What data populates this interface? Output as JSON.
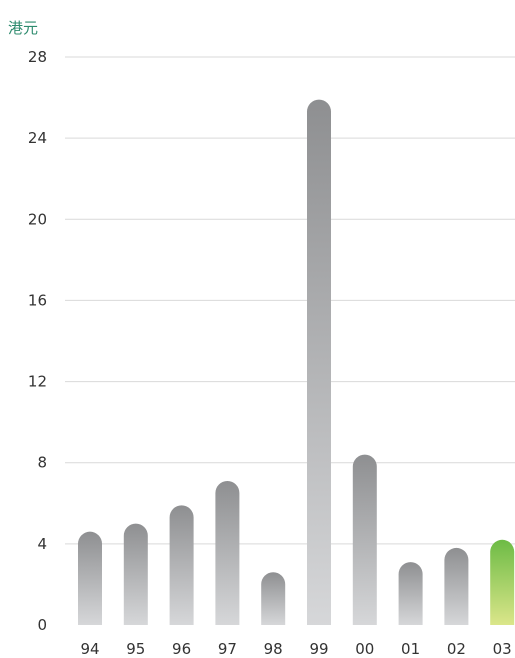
{
  "chart_data": {
    "type": "bar",
    "unit_label": "港元",
    "categories": [
      "94",
      "95",
      "96",
      "97",
      "98",
      "99",
      "00",
      "01",
      "02",
      "03"
    ],
    "values": [
      4.6,
      5.0,
      5.9,
      7.1,
      2.6,
      25.9,
      8.4,
      3.1,
      3.8,
      4.2
    ],
    "ylim": [
      0,
      28
    ],
    "yticks": [
      0,
      4,
      8,
      12,
      16,
      20,
      24,
      28
    ],
    "grid": true,
    "legend": "none",
    "colors": {
      "unit_label": "#2e8b6e",
      "grid": "#d9d9d9",
      "bar_top": "#8e8f91",
      "bar_bottom": "#d6d7d9",
      "highlight_top": "#6dbb45",
      "highlight_bottom": "#dbe68a"
    },
    "highlight_category": "03"
  }
}
